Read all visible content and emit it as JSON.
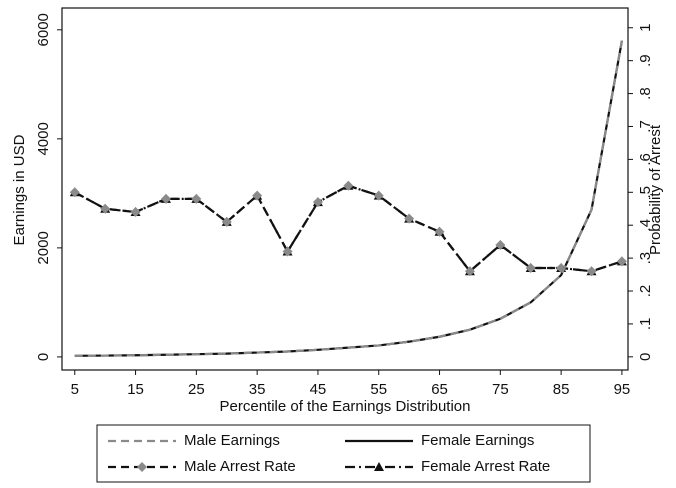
{
  "chart_data": {
    "type": "line",
    "x_label": "Percentile of the Earnings Distribution",
    "y_label": "Earnings in USD",
    "y2_label": "Probability of Arrest",
    "x": [
      5,
      10,
      15,
      20,
      25,
      30,
      35,
      40,
      45,
      50,
      55,
      60,
      65,
      70,
      75,
      80,
      85,
      90,
      95
    ],
    "xlim": [
      2.9,
      96
    ],
    "xticks": [
      5,
      15,
      25,
      35,
      45,
      55,
      65,
      75,
      85,
      95
    ],
    "ylim": [
      -240,
      6400
    ],
    "yticks": [
      0,
      2000,
      4000,
      6000
    ],
    "y2lim": [
      -0.04,
      1.06
    ],
    "y2ticks": [
      0,
      {
        "value": 0.1,
        "label": ".1"
      },
      {
        "value": 0.2,
        "label": ".2"
      },
      {
        "value": 0.3,
        "label": ".3"
      },
      {
        "value": 0.4,
        "label": ".4"
      },
      {
        "value": 0.5,
        "label": ".5"
      },
      {
        "value": 0.6,
        "label": ".6"
      },
      {
        "value": 0.7,
        "label": ".7"
      },
      {
        "value": 0.8,
        "label": ".8"
      },
      {
        "value": 0.9,
        "label": ".9"
      },
      1
    ],
    "series": [
      {
        "name": "Male Earnings",
        "color": "#8a8a8a",
        "line_style": "dashed",
        "values": [
          20,
          25,
          30,
          40,
          50,
          60,
          80,
          100,
          130,
          170,
          210,
          280,
          370,
          500,
          700,
          1000,
          1500,
          2700,
          5800
        ]
      },
      {
        "name": "Female Earnings",
        "color": "#111111",
        "line_style": "solid",
        "values": [
          20,
          25,
          30,
          40,
          50,
          60,
          80,
          100,
          130,
          170,
          210,
          280,
          370,
          500,
          700,
          1000,
          1500,
          2700,
          5800
        ]
      },
      {
        "name": "Male Arrest Rate",
        "color": "#111111",
        "line_style": "dashed",
        "marker": "diamond",
        "marker_color": "#8a8a8a",
        "axis": "y2",
        "values": [
          0.5,
          0.45,
          0.44,
          0.48,
          0.48,
          0.41,
          0.49,
          0.32,
          0.47,
          0.52,
          0.49,
          0.42,
          0.38,
          0.26,
          0.34,
          0.27,
          0.27,
          0.26,
          0.29
        ]
      },
      {
        "name": "Female Arrest Rate",
        "color": "#111111",
        "line_style": "dashdot",
        "marker": "triangle",
        "marker_color": "#111111",
        "axis": "y2",
        "values": [
          0.5,
          0.45,
          0.44,
          0.48,
          0.48,
          0.41,
          0.49,
          0.32,
          0.47,
          0.52,
          0.49,
          0.42,
          0.38,
          0.26,
          0.34,
          0.27,
          0.27,
          0.26,
          0.29
        ]
      }
    ]
  }
}
